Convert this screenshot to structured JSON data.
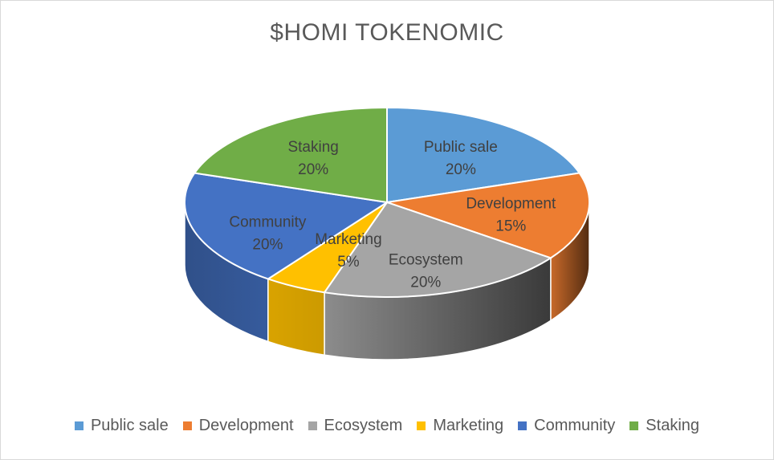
{
  "chart_data": {
    "type": "pie",
    "title": "$HOMI TOKENOMIC",
    "legend_position": "bottom",
    "style": "3d",
    "categories": [
      "Public sale",
      "Development",
      "Ecosystem",
      "Marketing",
      "Community",
      "Staking"
    ],
    "values": [
      20,
      15,
      20,
      5,
      20,
      20
    ],
    "labels": [
      "20%",
      "15%",
      "20%",
      "5%",
      "20%",
      "20%"
    ],
    "colors": [
      "#5b9bd5",
      "#ed7d31",
      "#a5a5a5",
      "#ffc000",
      "#4472c4",
      "#70ad47"
    ]
  }
}
